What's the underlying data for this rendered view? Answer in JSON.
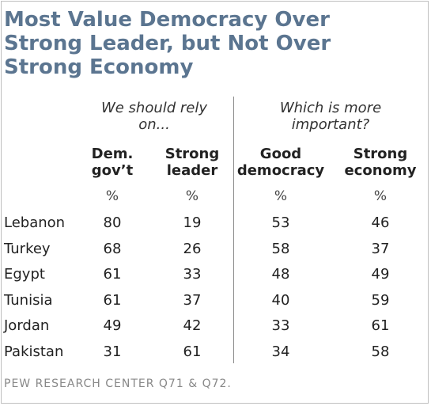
{
  "title_lines": [
    "Most Value Democracy Over",
    "Strong Leader, but Not Over",
    "Strong Economy"
  ],
  "chart_data": {
    "type": "table",
    "groups": [
      {
        "label_lines": [
          "We should rely",
          "on..."
        ]
      },
      {
        "label_lines": [
          "Which is more",
          "important?"
        ]
      }
    ],
    "columns": [
      {
        "lines": [
          "Dem.",
          "gov’t"
        ],
        "unit": "%"
      },
      {
        "lines": [
          "Strong",
          "leader"
        ],
        "unit": "%"
      },
      {
        "lines": [
          "Good",
          "democracy"
        ],
        "unit": "%"
      },
      {
        "lines": [
          "Strong",
          "economy"
        ],
        "unit": "%"
      }
    ],
    "rows": [
      {
        "country": "Lebanon",
        "values": [
          80,
          19,
          53,
          46
        ]
      },
      {
        "country": "Turkey",
        "values": [
          68,
          26,
          58,
          37
        ]
      },
      {
        "country": "Egypt",
        "values": [
          61,
          33,
          48,
          49
        ]
      },
      {
        "country": "Tunisia",
        "values": [
          61,
          37,
          40,
          59
        ]
      },
      {
        "country": "Jordan",
        "values": [
          49,
          42,
          33,
          61
        ]
      },
      {
        "country": "Pakistan",
        "values": [
          31,
          61,
          34,
          58
        ]
      }
    ]
  },
  "source": "PEW RESEARCH CENTER Q71 & Q72."
}
